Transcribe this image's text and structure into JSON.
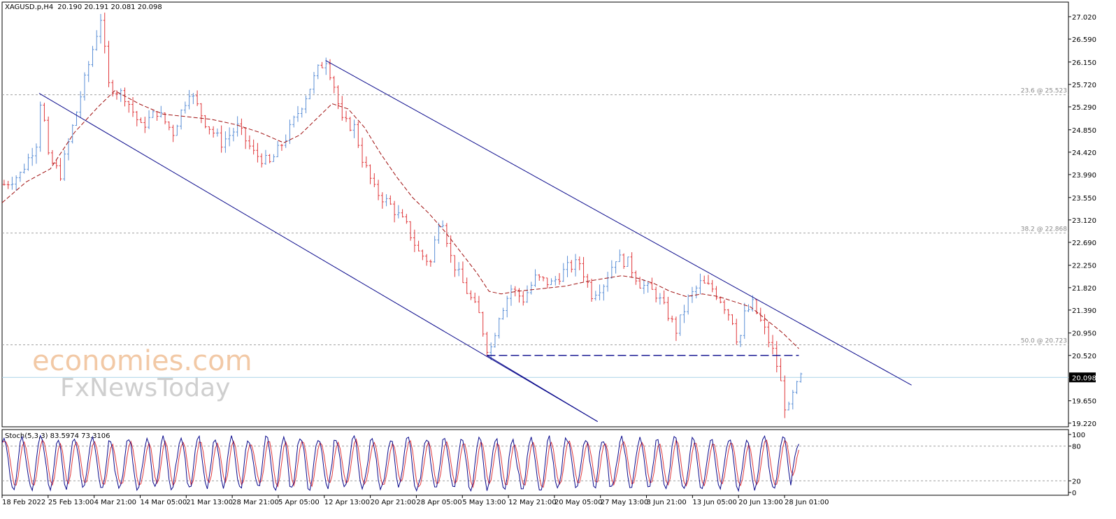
{
  "header": {
    "symbol": "XAGUSD.p,H4",
    "ohlc": "20.190 20.191 20.081 20.098"
  },
  "watermark": {
    "line1": "economies.com",
    "line2": "FxNewsToday"
  },
  "colors": {
    "bull": "#5b8fd6",
    "bear": "#e0383b",
    "ma": "#a01010",
    "channel": "#0a0a8c",
    "fib": "#a0a0a0",
    "price_line": "#aad4e8",
    "stoch_main": "#0a0a8c",
    "stoch_signal": "#e0383b"
  },
  "chart_data": [
    {
      "type": "candlestick",
      "title": "XAGUSD.p,H4",
      "y_axis": {
        "range": [
          19.15,
          27.3
        ],
        "ticks": [
          "27.020",
          "26.590",
          "26.150",
          "25.720",
          "25.290",
          "24.850",
          "24.420",
          "23.990",
          "23.550",
          "23.120",
          "22.690",
          "22.250",
          "21.820",
          "21.390",
          "20.950",
          "20.520",
          "19.650",
          "19.220"
        ],
        "current_price_label": "20.098",
        "current_price": 20.098
      },
      "x_axis": {
        "ticks": [
          "18 Feb 2022",
          "25 Feb 13:00",
          "4 Mar 21:00",
          "14 Mar 05:00",
          "21 Mar 13:00",
          "28 Mar 21:00",
          "5 Apr 05:00",
          "12 Apr 13:00",
          "20 Apr 21:00",
          "28 Apr 05:00",
          "5 May 13:00",
          "12 May 21:00",
          "20 May 05:00",
          "27 May 13:00",
          "3 Jun 21:00",
          "13 Jun 05:00",
          "20 Jun 13:00",
          "28 Jun 01:00"
        ]
      },
      "price_path": [
        [
          0,
          23.8
        ],
        [
          4,
          24.0
        ],
        [
          8,
          24.6
        ],
        [
          9.2,
          25.55
        ],
        [
          11,
          24.3
        ],
        [
          14,
          24.0
        ],
        [
          16,
          24.6
        ],
        [
          18,
          25.2
        ],
        [
          22,
          26.4
        ],
        [
          24,
          27.0
        ],
        [
          26,
          25.7
        ],
        [
          30,
          25.5
        ],
        [
          34,
          24.9
        ],
        [
          38,
          25.2
        ],
        [
          42,
          24.8
        ],
        [
          46,
          25.6
        ],
        [
          50,
          25.0
        ],
        [
          54,
          24.6
        ],
        [
          58,
          24.9
        ],
        [
          62,
          24.4
        ],
        [
          66,
          24.2
        ],
        [
          70,
          24.7
        ],
        [
          75,
          25.5
        ],
        [
          78,
          26.0
        ],
        [
          80,
          26.2
        ],
        [
          82,
          25.7
        ],
        [
          84,
          25.0
        ],
        [
          87,
          24.9
        ],
        [
          89,
          24.3
        ],
        [
          92,
          23.7
        ],
        [
          96,
          23.4
        ],
        [
          100,
          23.0
        ],
        [
          103,
          22.5
        ],
        [
          106,
          22.3
        ],
        [
          108.5,
          23.3
        ],
        [
          111,
          22.4
        ],
        [
          114,
          21.9
        ],
        [
          118,
          21.3
        ],
        [
          120.5,
          20.52
        ],
        [
          123,
          21.3
        ],
        [
          126,
          21.8
        ],
        [
          129,
          21.6
        ],
        [
          132,
          22.0
        ],
        [
          136,
          21.9
        ],
        [
          140,
          22.2
        ],
        [
          143,
          22.3
        ],
        [
          146,
          21.7
        ],
        [
          149,
          21.9
        ],
        [
          152,
          22.4
        ],
        [
          155,
          22.3
        ],
        [
          158,
          21.9
        ],
        [
          162,
          21.7
        ],
        [
          165,
          21.3
        ],
        [
          167,
          21.0
        ],
        [
          170,
          21.6
        ],
        [
          173,
          21.9
        ],
        [
          176,
          21.8
        ],
        [
          178,
          21.6
        ],
        [
          181,
          21.2
        ],
        [
          182.5,
          20.7
        ],
        [
          184,
          21.3
        ],
        [
          186,
          21.5
        ],
        [
          189,
          21.0
        ],
        [
          191,
          20.6
        ],
        [
          192.5,
          20.2
        ],
        [
          194.5,
          19.35
        ],
        [
          196,
          19.75
        ],
        [
          198,
          20.1
        ]
      ],
      "moving_average": [
        [
          0,
          23.45
        ],
        [
          6,
          23.85
        ],
        [
          12,
          24.1
        ],
        [
          18,
          24.8
        ],
        [
          24,
          25.3
        ],
        [
          28,
          25.6
        ],
        [
          34,
          25.35
        ],
        [
          40,
          25.15
        ],
        [
          46,
          25.1
        ],
        [
          52,
          25.05
        ],
        [
          58,
          24.95
        ],
        [
          64,
          24.8
        ],
        [
          70,
          24.6
        ],
        [
          74,
          24.75
        ],
        [
          78,
          25.05
        ],
        [
          82,
          25.35
        ],
        [
          86,
          25.25
        ],
        [
          90,
          24.9
        ],
        [
          94,
          24.4
        ],
        [
          98,
          23.95
        ],
        [
          102,
          23.55
        ],
        [
          106,
          23.25
        ],
        [
          110,
          22.9
        ],
        [
          114,
          22.5
        ],
        [
          118,
          22.1
        ],
        [
          121,
          21.75
        ],
        [
          124,
          21.7
        ],
        [
          128,
          21.75
        ],
        [
          134,
          21.8
        ],
        [
          140,
          21.85
        ],
        [
          146,
          21.95
        ],
        [
          150,
          22.0
        ],
        [
          154,
          22.05
        ],
        [
          158,
          22.0
        ],
        [
          162,
          21.9
        ],
        [
          166,
          21.75
        ],
        [
          170,
          21.65
        ],
        [
          174,
          21.7
        ],
        [
          178,
          21.65
        ],
        [
          182,
          21.55
        ],
        [
          186,
          21.45
        ],
        [
          190,
          21.2
        ],
        [
          194,
          20.95
        ],
        [
          198,
          20.65
        ]
      ],
      "channel_lines": [
        {
          "from": [
            9.2,
            25.55
          ],
          "to": [
            148,
            19.25
          ]
        },
        {
          "from": [
            120.5,
            20.52
          ],
          "to": [
            148,
            19.25
          ]
        },
        {
          "from": [
            80.4,
            26.18
          ],
          "to": [
            226,
            19.95
          ]
        }
      ],
      "support_line": {
        "level": 20.52,
        "from": 120.5,
        "to": 198
      },
      "fib_levels": [
        {
          "label": "23.6 @ 25.523",
          "value": 25.523
        },
        {
          "label": "38.2 @ 22.868",
          "value": 22.868
        },
        {
          "label": "50.0 @ 20.723",
          "value": 20.723
        }
      ],
      "x_domain": [
        0,
        265
      ]
    },
    {
      "type": "line",
      "title": "Stoch(5,3,3) 83.5974 73.3106",
      "y_axis": {
        "range": [
          0,
          100
        ],
        "ticks": [
          "100",
          "80",
          "20",
          "0"
        ],
        "levels": [
          80,
          20
        ]
      },
      "series": [
        {
          "name": "Main",
          "value": 83.5974
        },
        {
          "name": "Signal",
          "value": 73.3106
        }
      ]
    }
  ]
}
